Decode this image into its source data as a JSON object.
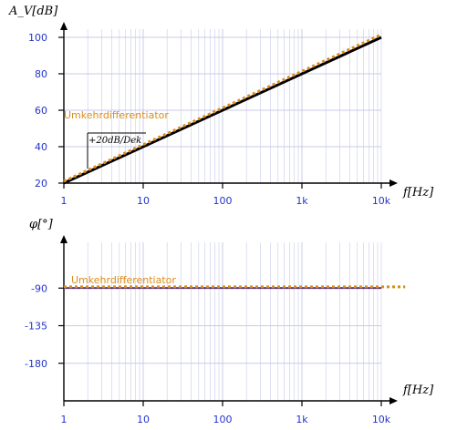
{
  "chart_data": [
    {
      "type": "line",
      "panel": "gain",
      "x_scale": "log",
      "xlim": [
        1,
        10000
      ],
      "ylim": [
        20,
        100
      ],
      "x_ticks": [
        "1",
        "10",
        "100",
        "1k",
        "10k"
      ],
      "y_ticks": [
        "100",
        "80",
        "60",
        "40",
        "20"
      ],
      "y_tick_values": [
        100,
        80,
        60,
        40,
        20
      ],
      "xlabel": "f[Hz]",
      "ylabel": "A_V[dB]",
      "series_label": "Umkehrdifferentiator",
      "annotation": "+20dB/Dek",
      "series": [
        {
          "style": "solid",
          "color": "#000000",
          "x": [
            1,
            10000
          ],
          "y": [
            20,
            100
          ]
        },
        {
          "style": "dotted",
          "color": "#d98c1f",
          "x": [
            1,
            10000
          ],
          "y": [
            21,
            101.5
          ]
        }
      ],
      "grid": true
    },
    {
      "type": "line",
      "panel": "phase",
      "x_scale": "log",
      "xlim": [
        1,
        10000
      ],
      "ylim": [
        -225,
        -45
      ],
      "x_ticks": [
        "1",
        "10",
        "100",
        "1k",
        "10k"
      ],
      "y_ticks": [
        "-90",
        "-135",
        "-180"
      ],
      "y_tick_values": [
        -90,
        -135,
        -180
      ],
      "xlabel": "f[Hz]",
      "ylabel": "φ[°]",
      "series_label": "Umkehrdifferentiator",
      "series": [
        {
          "style": "solid",
          "color": "#2a2a88",
          "x": [
            1,
            10000
          ],
          "y": [
            -90,
            -90
          ]
        },
        {
          "style": "solid-red",
          "color": "#d23a3a",
          "x": [
            1,
            10000
          ],
          "y": [
            -89.3,
            -89.3
          ]
        },
        {
          "style": "dotted",
          "color": "#d98c1f",
          "x": [
            1,
            20000
          ],
          "y": [
            -88.5,
            -88.5
          ]
        }
      ],
      "grid": true
    }
  ],
  "colors": {
    "tick_label": "#2233cc",
    "grid": "#c8cbe8",
    "series_label": "#d98c1f",
    "axis": "#000000"
  }
}
